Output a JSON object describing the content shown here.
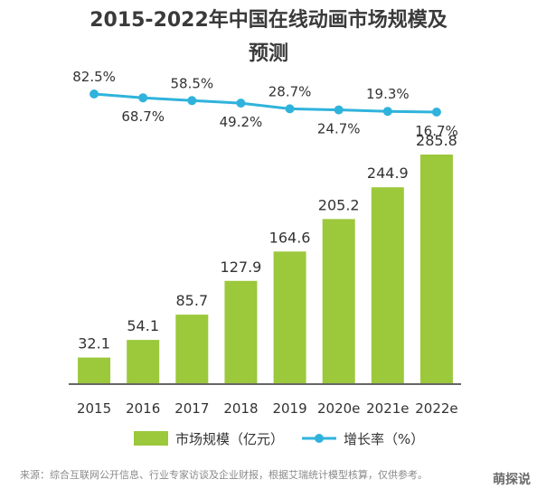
{
  "title_line1": "2015-2022年中国在线动画市场规模及",
  "title_line2": "预测",
  "source": "来源：综合互联网公开信息、行业专家访谈及企业财报，根据艾瑞统计模型核算，仅供参考。",
  "watermark": "萌探说",
  "colors": {
    "bar": "#9cc83c",
    "line": "#2fb3dc",
    "text": "#333333"
  },
  "chart_data": {
    "type": "bar",
    "categories": [
      "2015",
      "2016",
      "2017",
      "2018",
      "2019",
      "2020e",
      "2021e",
      "2022e"
    ],
    "series": [
      {
        "name": "市场规模（亿元）",
        "type": "bar",
        "values": [
          32.1,
          54.1,
          85.7,
          127.9,
          164.6,
          205.2,
          244.9,
          285.8
        ]
      },
      {
        "name": "增长率（%）",
        "type": "line",
        "values": [
          82.5,
          68.7,
          58.5,
          49.2,
          28.7,
          24.7,
          19.3,
          16.7
        ],
        "labels": [
          "82.5%",
          "68.7%",
          "58.5%",
          "49.2%",
          "28.7%",
          "24.7%",
          "19.3%",
          "16.7%"
        ]
      }
    ],
    "title": "2015-2022年中国在线动画市场规模及预测",
    "legend_position": "bottom",
    "grid": false
  }
}
